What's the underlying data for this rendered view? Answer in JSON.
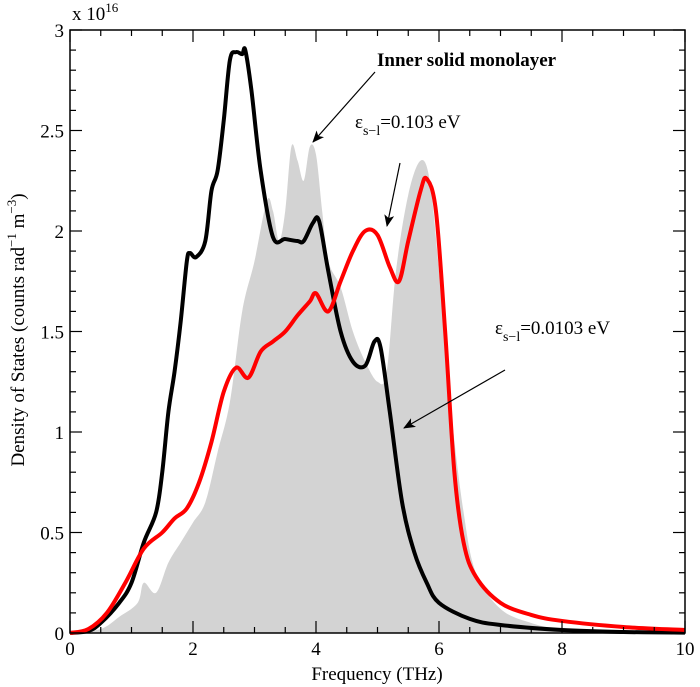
{
  "chart_data": {
    "type": "line",
    "xlabel": "Frequency (THz)",
    "ylabel": "Density of States (counts rad",
    "ylabel_sup1": "−1",
    "ylabel_mid": " m",
    "ylabel_sup2": "−3",
    "ylabel_end": ")",
    "y_multiplier": "x 10",
    "y_multiplier_exp": "16",
    "xlim": [
      0,
      10
    ],
    "ylim": [
      0,
      3
    ],
    "xticks": [
      "0",
      "2",
      "4",
      "6",
      "8",
      "10"
    ],
    "yticks": [
      "0",
      "0.5",
      "1",
      "1.5",
      "2",
      "2.5",
      "3"
    ],
    "grid": false,
    "series": [
      {
        "name": "Inner solid monolayer",
        "style": "filled-area",
        "color": "#d3d3d3",
        "x": [
          0,
          0.5,
          0.8,
          1.1,
          1.2,
          1.4,
          1.6,
          1.8,
          2.0,
          2.2,
          2.4,
          2.6,
          2.8,
          3.0,
          3.2,
          3.3,
          3.4,
          3.5,
          3.6,
          3.7,
          3.8,
          3.9,
          4.0,
          4.1,
          4.2,
          4.4,
          4.6,
          4.8,
          5.0,
          5.15,
          5.3,
          5.5,
          5.7,
          5.85,
          6.0,
          6.2,
          6.4,
          6.6,
          7.0,
          7.5,
          8,
          9,
          10
        ],
        "y": [
          0,
          0.02,
          0.08,
          0.15,
          0.25,
          0.2,
          0.35,
          0.45,
          0.55,
          0.65,
          0.9,
          1.15,
          1.6,
          1.85,
          2.15,
          2.1,
          1.95,
          2.1,
          2.42,
          2.35,
          2.25,
          2.42,
          2.38,
          2.1,
          1.85,
          1.72,
          1.5,
          1.35,
          1.25,
          1.3,
          1.8,
          2.18,
          2.35,
          2.25,
          1.8,
          1.1,
          0.6,
          0.3,
          0.12,
          0.05,
          0.02,
          0.005,
          0
        ]
      },
      {
        "name": "εs−l=0.0103 eV",
        "color": "#000000",
        "x": [
          0,
          0.3,
          0.5,
          0.8,
          1.0,
          1.2,
          1.4,
          1.5,
          1.6,
          1.7,
          1.8,
          1.9,
          1.95,
          2.05,
          2.2,
          2.3,
          2.4,
          2.5,
          2.6,
          2.7,
          2.8,
          2.85,
          2.95,
          3.1,
          3.3,
          3.5,
          3.7,
          3.8,
          3.95,
          4.05,
          4.2,
          4.4,
          4.6,
          4.8,
          4.95,
          5.05,
          5.2,
          5.4,
          5.6,
          5.8,
          6.0,
          6.5,
          7,
          8,
          9,
          10
        ],
        "y": [
          0,
          0.01,
          0.05,
          0.15,
          0.25,
          0.45,
          0.6,
          0.8,
          1.1,
          1.3,
          1.55,
          1.85,
          1.89,
          1.87,
          1.95,
          2.2,
          2.3,
          2.55,
          2.85,
          2.89,
          2.88,
          2.9,
          2.7,
          2.3,
          1.97,
          1.96,
          1.95,
          1.95,
          2.04,
          2.05,
          1.8,
          1.5,
          1.35,
          1.33,
          1.45,
          1.42,
          1.1,
          0.65,
          0.4,
          0.25,
          0.15,
          0.07,
          0.04,
          0.015,
          0.005,
          0.002
        ]
      },
      {
        "name": "εs−l=0.103 eV",
        "color": "#ff0000",
        "x": [
          0,
          0.3,
          0.6,
          0.9,
          1.2,
          1.5,
          1.7,
          1.9,
          2.1,
          2.3,
          2.5,
          2.7,
          2.9,
          3.1,
          3.3,
          3.5,
          3.7,
          3.9,
          4.0,
          4.2,
          4.4,
          4.6,
          4.8,
          5.0,
          5.2,
          5.35,
          5.5,
          5.7,
          5.8,
          5.95,
          6.1,
          6.25,
          6.4,
          6.6,
          7,
          7.5,
          8,
          9,
          10
        ],
        "y": [
          0,
          0.02,
          0.1,
          0.25,
          0.42,
          0.5,
          0.57,
          0.62,
          0.75,
          0.95,
          1.2,
          1.32,
          1.27,
          1.4,
          1.45,
          1.5,
          1.58,
          1.65,
          1.69,
          1.6,
          1.75,
          1.9,
          2.0,
          1.98,
          1.82,
          1.75,
          1.95,
          2.2,
          2.26,
          2.1,
          1.5,
          0.8,
          0.45,
          0.28,
          0.15,
          0.09,
          0.06,
          0.03,
          0.015
        ]
      }
    ],
    "annotations": [
      {
        "text": "Inner solid monolayer"
      },
      {
        "text": "ε",
        "sub": "s−l",
        "rest": "=0.103 eV"
      },
      {
        "text": "ε",
        "sub": "s−l",
        "rest": "=0.0103 eV"
      }
    ]
  }
}
